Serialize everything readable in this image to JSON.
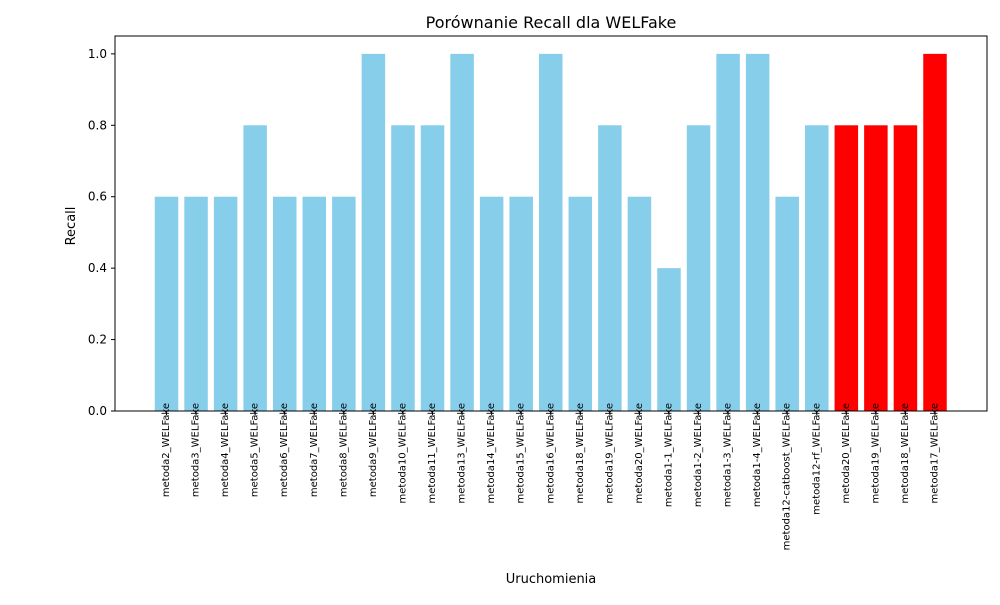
{
  "chart_data": {
    "type": "bar",
    "title": "Porównanie Recall dla WELFake",
    "xlabel": "Uruchomienia",
    "ylabel": "Recall",
    "ylim": [
      0,
      1.05
    ],
    "yticks": [
      "0.0",
      "0.2",
      "0.4",
      "0.6",
      "0.8",
      "1.0"
    ],
    "grid": false,
    "categories": [
      "metoda2_WELFake",
      "metoda3_WELFake",
      "metoda4_WELFake",
      "metoda5_WELFake",
      "metoda6_WELFake",
      "metoda7_WELFake",
      "metoda8_WELFake",
      "metoda9_WELFake",
      "metoda10_WELFake",
      "metoda11_WELFake",
      "metoda13_WELFake",
      "metoda14_WELFake",
      "metoda15_WELFake",
      "metoda16_WELFake",
      "metoda18_WELFake",
      "metoda19_WELFake",
      "metoda20_WELFake",
      "metoda1-1_WELFake",
      "metoda1-2_WELFake",
      "metoda1-3_WELFake",
      "metoda1-4_WELFake",
      "metoda12-catboost_WELFake",
      "metoda12-rf_WELFake",
      "metoda20_WELFake",
      "metoda19_WELFake",
      "metoda18_WELFake",
      "metoda17_WELFake"
    ],
    "values": [
      0.6,
      0.6,
      0.6,
      0.8,
      0.6,
      0.6,
      0.6,
      1.0,
      0.8,
      0.8,
      1.0,
      0.6,
      0.6,
      1.0,
      0.6,
      0.8,
      0.6,
      0.4,
      0.8,
      1.0,
      1.0,
      0.6,
      0.8,
      0.8,
      0.8,
      0.8,
      1.0
    ],
    "colors": {
      "default": "#87ceeb",
      "highlight": "#ff0000"
    },
    "bar_colors": [
      "default",
      "default",
      "default",
      "default",
      "default",
      "default",
      "default",
      "default",
      "default",
      "default",
      "default",
      "default",
      "default",
      "default",
      "default",
      "default",
      "default",
      "default",
      "default",
      "default",
      "default",
      "default",
      "default",
      "highlight",
      "highlight",
      "highlight",
      "highlight"
    ]
  }
}
